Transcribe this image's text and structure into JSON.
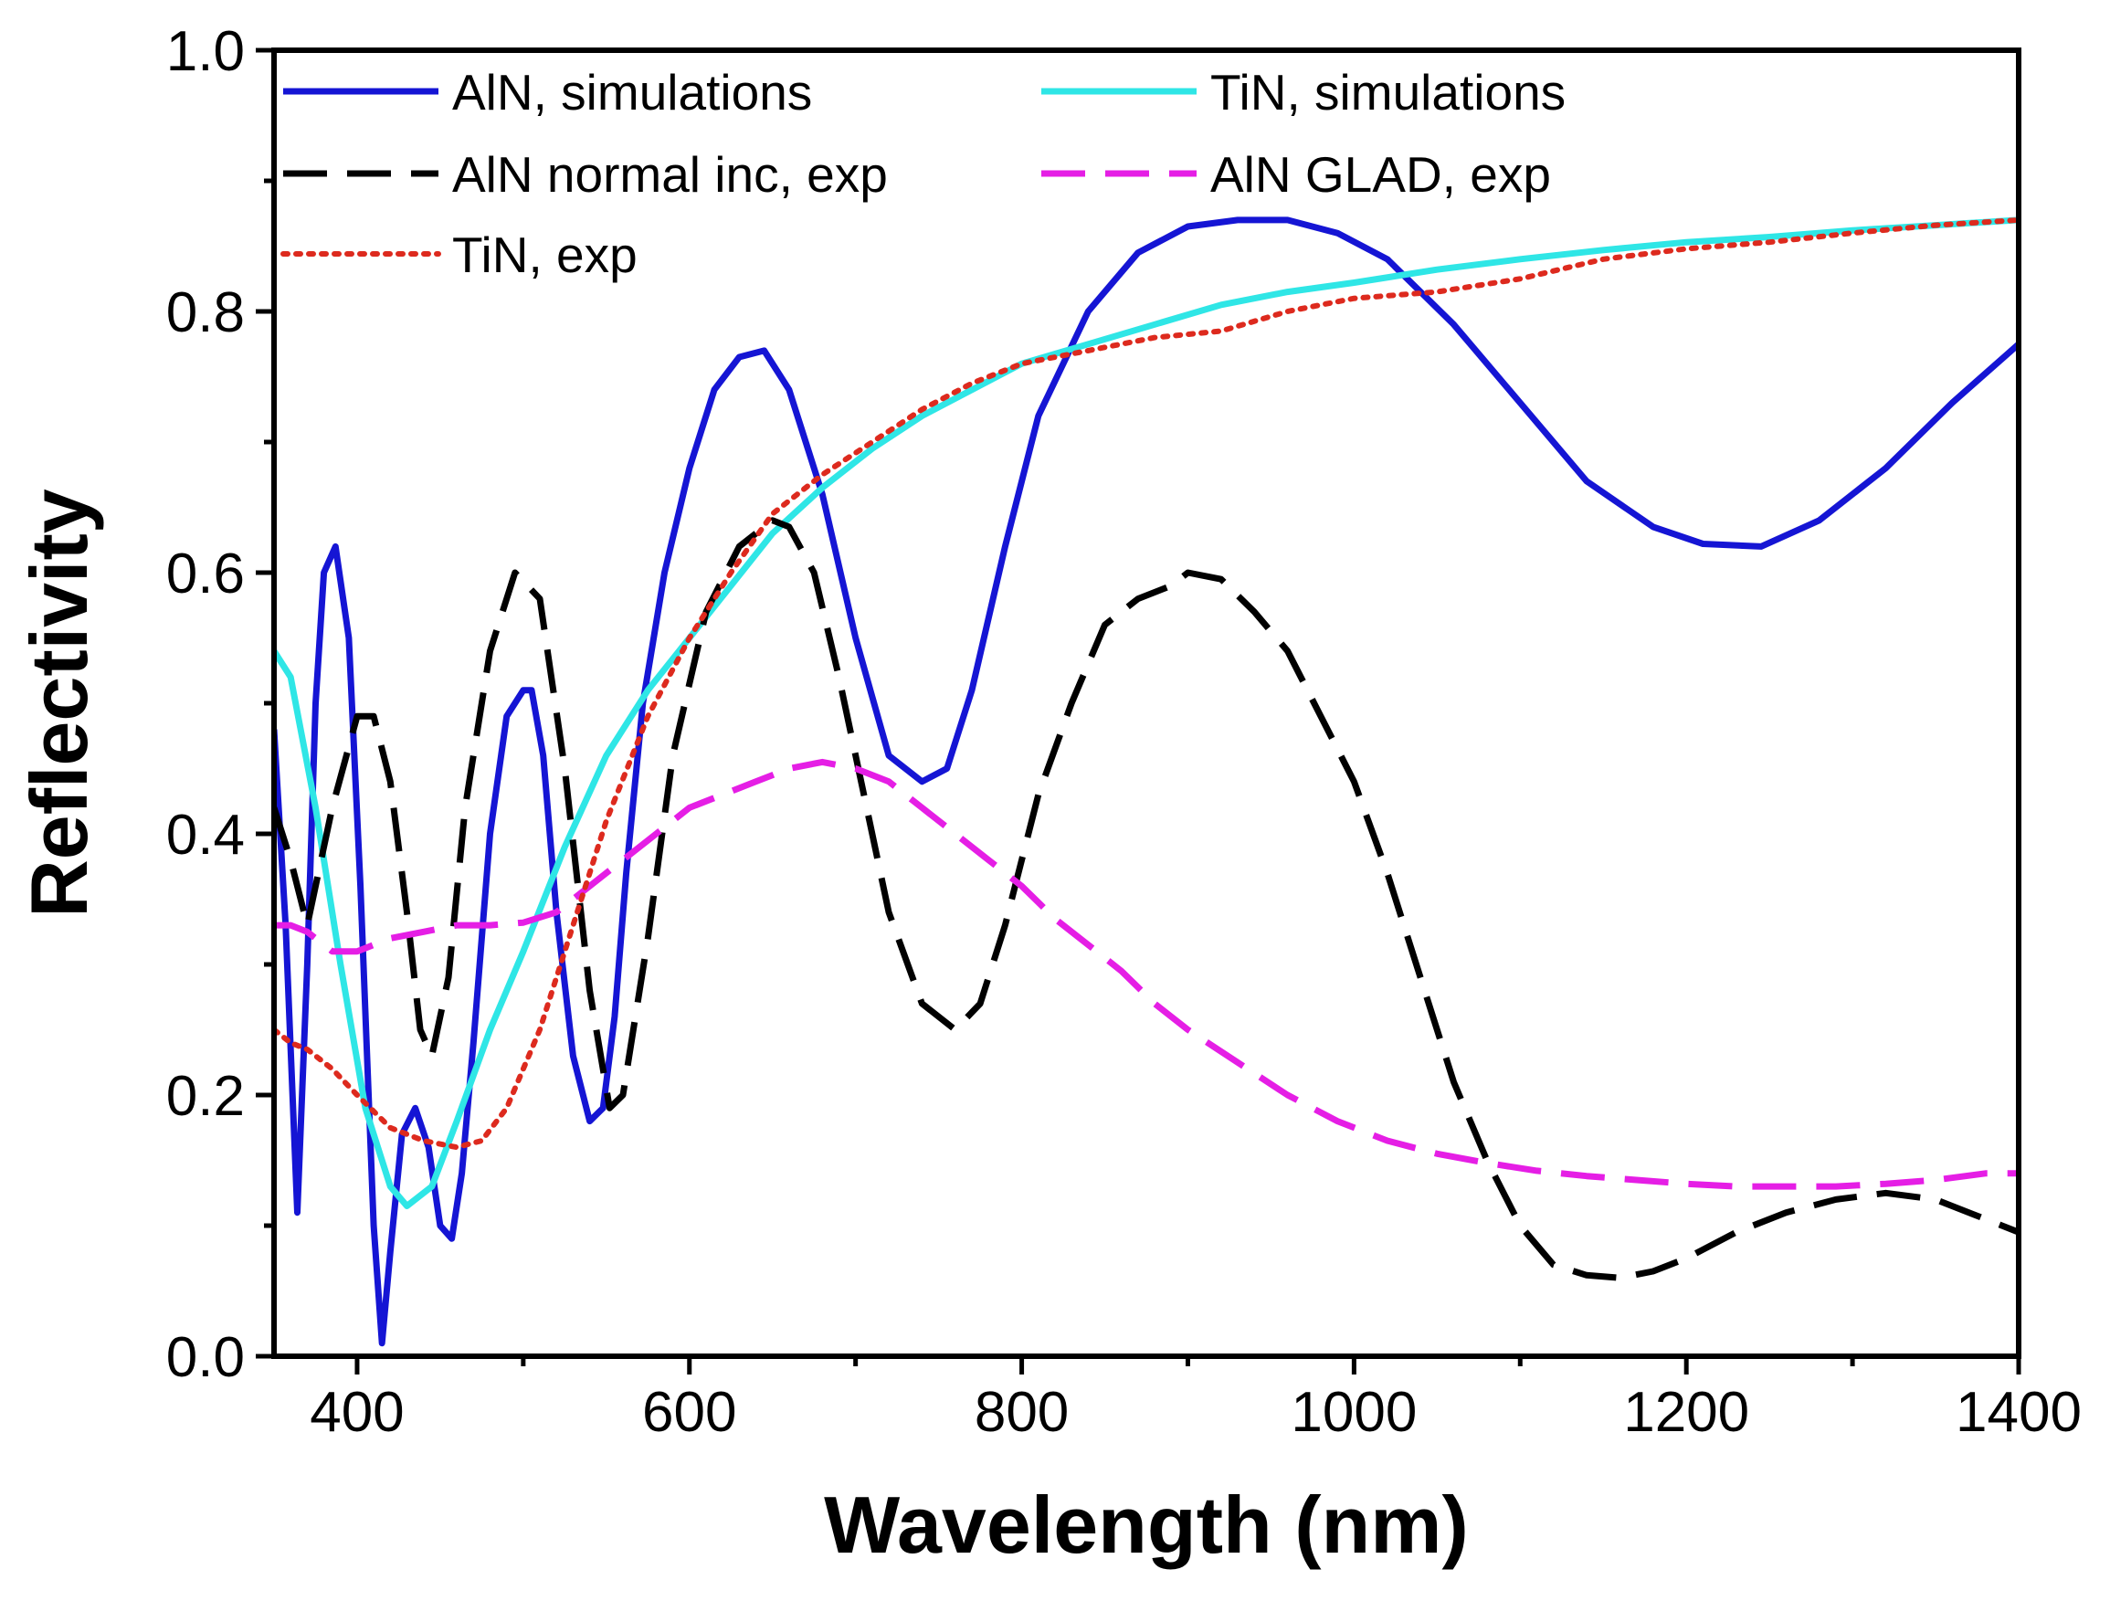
{
  "chart_data": {
    "type": "line",
    "title": "",
    "xlabel": "Wavelength (nm)",
    "ylabel": "Reflectivity",
    "xlim": [
      350,
      1400
    ],
    "ylim": [
      0.0,
      1.0
    ],
    "xticks": [
      400,
      600,
      800,
      1000,
      1200,
      1400
    ],
    "xtick_labels": [
      "400",
      "600",
      "800",
      "1000",
      "1200",
      "1400"
    ],
    "yticks": [
      0.0,
      0.2,
      0.4,
      0.6,
      0.8,
      1.0
    ],
    "ytick_labels": [
      "0.0",
      "0.2",
      "0.4",
      "0.6",
      "0.8",
      "1.0"
    ],
    "grid": false,
    "legend_position": "top-left",
    "series": [
      {
        "name": "AlN, simulations",
        "color": "#1515d4",
        "style": "solid",
        "x": [
          350,
          357,
          364,
          370,
          375,
          380,
          387,
          395,
          402,
          410,
          415,
          420,
          427,
          435,
          443,
          450,
          457,
          463,
          470,
          480,
          490,
          500,
          505,
          512,
          520,
          530,
          540,
          548,
          555,
          562,
          572,
          585,
          600,
          615,
          630,
          645,
          660,
          680,
          700,
          720,
          740,
          755,
          770,
          790,
          810,
          840,
          870,
          900,
          930,
          960,
          990,
          1020,
          1060,
          1100,
          1140,
          1180,
          1210,
          1245,
          1280,
          1320,
          1360,
          1400
        ],
        "y": [
          0.48,
          0.33,
          0.11,
          0.3,
          0.5,
          0.6,
          0.62,
          0.55,
          0.36,
          0.1,
          0.01,
          0.08,
          0.17,
          0.19,
          0.16,
          0.1,
          0.09,
          0.14,
          0.24,
          0.4,
          0.49,
          0.51,
          0.51,
          0.46,
          0.34,
          0.23,
          0.18,
          0.19,
          0.26,
          0.37,
          0.5,
          0.6,
          0.68,
          0.74,
          0.765,
          0.77,
          0.74,
          0.66,
          0.55,
          0.46,
          0.44,
          0.45,
          0.51,
          0.62,
          0.72,
          0.8,
          0.845,
          0.865,
          0.87,
          0.87,
          0.86,
          0.84,
          0.79,
          0.73,
          0.67,
          0.635,
          0.622,
          0.62,
          0.64,
          0.68,
          0.73,
          0.775
        ]
      },
      {
        "name": "TiN, simulations",
        "color": "#2fe6e6",
        "style": "solid",
        "x": [
          350,
          360,
          375,
          390,
          405,
          420,
          430,
          445,
          460,
          480,
          500,
          525,
          550,
          575,
          600,
          625,
          650,
          680,
          710,
          740,
          770,
          800,
          840,
          880,
          920,
          960,
          1000,
          1050,
          1100,
          1150,
          1200,
          1250,
          1300,
          1350,
          1400
        ],
        "y": [
          0.54,
          0.52,
          0.42,
          0.3,
          0.19,
          0.13,
          0.115,
          0.13,
          0.18,
          0.25,
          0.31,
          0.39,
          0.46,
          0.51,
          0.55,
          0.59,
          0.63,
          0.665,
          0.695,
          0.72,
          0.74,
          0.76,
          0.775,
          0.79,
          0.805,
          0.815,
          0.822,
          0.832,
          0.84,
          0.847,
          0.853,
          0.857,
          0.862,
          0.866,
          0.87
        ]
      },
      {
        "name": "AlN normal inc, exp",
        "color": "#000000",
        "style": "dashed",
        "x": [
          350,
          360,
          370,
          385,
          400,
          410,
          420,
          430,
          438,
          445,
          455,
          465,
          480,
          495,
          510,
          525,
          540,
          552,
          560,
          575,
          590,
          610,
          630,
          650,
          660,
          675,
          690,
          705,
          720,
          740,
          760,
          775,
          790,
          810,
          830,
          850,
          870,
          890,
          900,
          920,
          940,
          960,
          980,
          1000,
          1020,
          1040,
          1060,
          1080,
          1100,
          1120,
          1140,
          1160,
          1180,
          1200,
          1230,
          1260,
          1290,
          1320,
          1350,
          1380,
          1400
        ],
        "y": [
          0.42,
          0.38,
          0.33,
          0.42,
          0.49,
          0.49,
          0.44,
          0.34,
          0.25,
          0.23,
          0.29,
          0.42,
          0.54,
          0.6,
          0.58,
          0.45,
          0.28,
          0.19,
          0.2,
          0.32,
          0.46,
          0.57,
          0.62,
          0.64,
          0.635,
          0.6,
          0.52,
          0.43,
          0.34,
          0.27,
          0.25,
          0.27,
          0.33,
          0.43,
          0.5,
          0.56,
          0.58,
          0.59,
          0.6,
          0.595,
          0.57,
          0.54,
          0.49,
          0.44,
          0.37,
          0.29,
          0.21,
          0.15,
          0.1,
          0.07,
          0.062,
          0.06,
          0.065,
          0.075,
          0.095,
          0.11,
          0.12,
          0.125,
          0.12,
          0.105,
          0.095
        ]
      },
      {
        "name": "AlN GLAD, exp",
        "color": "#e51ee5",
        "style": "dashed",
        "x": [
          350,
          360,
          370,
          385,
          400,
          420,
          440,
          460,
          480,
          500,
          520,
          540,
          560,
          580,
          600,
          620,
          640,
          660,
          680,
          700,
          720,
          740,
          760,
          780,
          800,
          820,
          840,
          860,
          880,
          900,
          930,
          960,
          990,
          1020,
          1050,
          1080,
          1110,
          1140,
          1170,
          1200,
          1230,
          1260,
          1290,
          1320,
          1350,
          1380,
          1400
        ],
        "y": [
          0.33,
          0.33,
          0.325,
          0.31,
          0.31,
          0.32,
          0.325,
          0.33,
          0.33,
          0.332,
          0.34,
          0.36,
          0.38,
          0.4,
          0.42,
          0.43,
          0.44,
          0.45,
          0.455,
          0.45,
          0.44,
          0.42,
          0.4,
          0.38,
          0.36,
          0.335,
          0.315,
          0.295,
          0.27,
          0.25,
          0.225,
          0.2,
          0.18,
          0.165,
          0.155,
          0.148,
          0.142,
          0.138,
          0.135,
          0.132,
          0.13,
          0.13,
          0.13,
          0.132,
          0.135,
          0.14,
          0.14
        ]
      },
      {
        "name": "TiN, exp",
        "color": "#dd2a1e",
        "style": "dotted",
        "x": [
          350,
          360,
          370,
          385,
          400,
          420,
          440,
          460,
          475,
          490,
          510,
          530,
          550,
          575,
          600,
          625,
          650,
          680,
          710,
          740,
          770,
          800,
          840,
          880,
          920,
          960,
          1000,
          1050,
          1100,
          1150,
          1200,
          1250,
          1300,
          1350,
          1400
        ],
        "y": [
          0.25,
          0.24,
          0.235,
          0.22,
          0.2,
          0.175,
          0.165,
          0.16,
          0.165,
          0.19,
          0.25,
          0.33,
          0.41,
          0.49,
          0.55,
          0.6,
          0.645,
          0.675,
          0.7,
          0.725,
          0.745,
          0.76,
          0.77,
          0.78,
          0.785,
          0.8,
          0.81,
          0.815,
          0.825,
          0.84,
          0.848,
          0.853,
          0.86,
          0.866,
          0.87
        ]
      }
    ]
  }
}
